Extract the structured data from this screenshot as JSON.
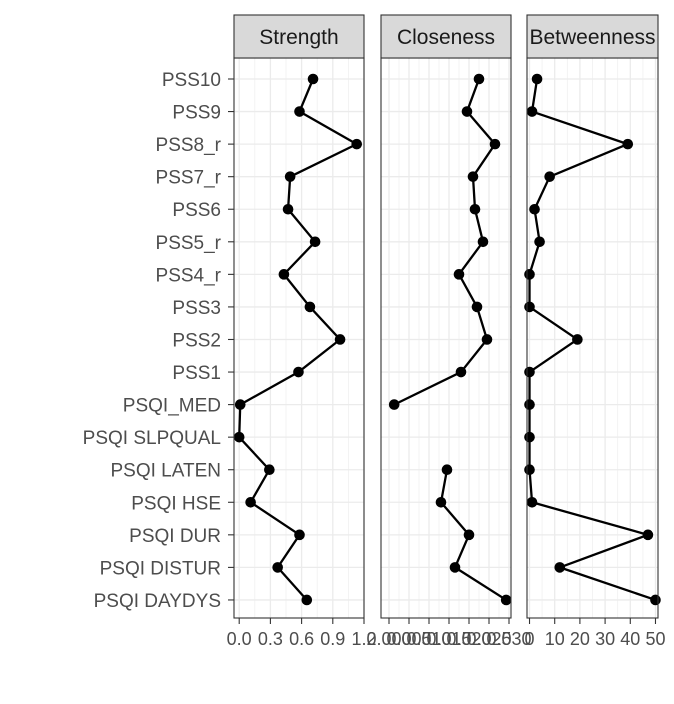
{
  "chart_data": {
    "type": "line",
    "orientation": "horizontal-dotplot",
    "categories": [
      "PSS10",
      "PSS9",
      "PSS8_r",
      "PSS7_r",
      "PSS6",
      "PSS5_r",
      "PSS4_r",
      "PSS3",
      "PSS2",
      "PSS1",
      "PSQI_MED",
      "PSQI SLPQUAL",
      "PSQI LATEN",
      "PSQI HSE",
      "PSQI DUR",
      "PSQI DISTUR",
      "PSQI DAYDYS"
    ],
    "panels": [
      {
        "title": "Strength",
        "display_title": "Strength",
        "xlim": [
          -0.05,
          1.2
        ],
        "ticks": [
          0.0,
          0.3,
          0.6,
          0.9,
          1.2
        ],
        "tick_labels": [
          "0.0",
          "0.3",
          "0.6",
          "0.9",
          "1.2"
        ],
        "values": [
          0.71,
          0.58,
          1.13,
          0.49,
          0.47,
          0.73,
          0.43,
          0.68,
          0.97,
          0.57,
          0.01,
          0.0,
          0.29,
          0.11,
          0.58,
          0.37,
          0.65
        ],
        "segments": [
          [
            0,
            16
          ]
        ]
      },
      {
        "title": "Closeness",
        "display_title": "Closeness",
        "xlim": [
          -0.002,
          0.0305
        ],
        "ticks": [
          0.0,
          0.005,
          0.01,
          0.015,
          0.02,
          0.025,
          0.03
        ],
        "tick_labels": [
          "0.000",
          "0.005",
          "0.010",
          "0.015",
          "0.020",
          "0.025",
          "0.030"
        ],
        "values": [
          0.0225,
          0.0195,
          0.0265,
          0.021,
          0.0215,
          0.0235,
          0.0175,
          0.022,
          0.0245,
          0.018,
          0.0013,
          null,
          0.0145,
          0.013,
          0.02,
          0.0165,
          0.0293
        ],
        "segments": [
          [
            0,
            10
          ],
          [
            12,
            16
          ]
        ]
      },
      {
        "title": "Betweenness",
        "display_title": "Betweenness",
        "xlim": [
          -1,
          51
        ],
        "ticks": [
          0,
          10,
          20,
          30,
          40,
          50
        ],
        "tick_labels": [
          "0",
          "10",
          "20",
          "30",
          "40",
          "50"
        ],
        "values": [
          3,
          1,
          39,
          8,
          2,
          4,
          0,
          0,
          19,
          0,
          0,
          0,
          0,
          1,
          47,
          12,
          50
        ],
        "segments": [
          [
            0,
            16
          ]
        ]
      }
    ],
    "xlabel": "",
    "ylabel": "",
    "legend": "none",
    "grid": true
  }
}
